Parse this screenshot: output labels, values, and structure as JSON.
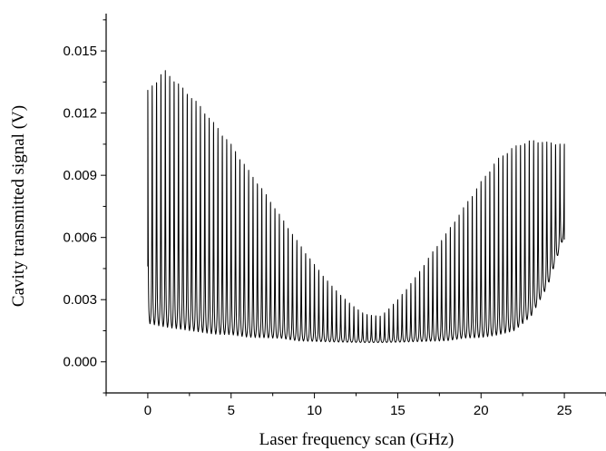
{
  "chart_data": {
    "type": "line",
    "title": "",
    "xlabel": "Laser frequency scan (GHz)",
    "ylabel": "Cavity transmitted signal (V)",
    "xlim": [
      -2.5,
      27.5
    ],
    "ylim": [
      -0.0015,
      0.0168
    ],
    "x_ticks": [
      0,
      5,
      10,
      15,
      20,
      25
    ],
    "x_tick_labels": [
      "0",
      "5",
      "10",
      "15",
      "20",
      "25"
    ],
    "y_ticks": [
      0.0,
      0.003,
      0.006,
      0.009,
      0.012,
      0.015
    ],
    "y_tick_labels": [
      "0.000",
      "0.003",
      "0.006",
      "0.009",
      "0.012",
      "0.015"
    ],
    "grid": false,
    "line_color": "#000000",
    "series": [
      {
        "peak_count": 95,
        "x_range": [
          0,
          25
        ],
        "peak_envelope": {
          "x": [
            0.0,
            1.0,
            2.0,
            3.0,
            4.0,
            5.0,
            6.0,
            7.0,
            8.0,
            9.0,
            10.0,
            11.0,
            12.0,
            13.0,
            14.0,
            15.0,
            16.0,
            17.0,
            18.0,
            19.0,
            20.0,
            21.0,
            22.0,
            23.0,
            24.0,
            25.0
          ],
          "y": [
            0.0131,
            0.0141,
            0.0133,
            0.0125,
            0.0115,
            0.0105,
            0.0093,
            0.0082,
            0.007,
            0.0058,
            0.0047,
            0.0037,
            0.0029,
            0.0023,
            0.0022,
            0.003,
            0.004,
            0.0052,
            0.0063,
            0.0075,
            0.0087,
            0.0098,
            0.0104,
            0.0107,
            0.0106,
            0.0105
          ]
        },
        "baseline_envelope": {
          "x": [
            0.0,
            1.0,
            2.0,
            3.0,
            4.0,
            5.0,
            6.0,
            7.0,
            8.0,
            9.0,
            10.0,
            11.0,
            12.0,
            13.0,
            14.0,
            15.0,
            16.0,
            17.0,
            18.0,
            19.0,
            20.0,
            21.0,
            22.0,
            23.0,
            24.0,
            25.0
          ],
          "y": [
            0.0016,
            0.0014,
            0.0013,
            0.0012,
            0.0011,
            0.0011,
            0.001,
            0.001,
            0.001,
            0.0009,
            0.0009,
            0.0009,
            0.0009,
            0.0009,
            0.0009,
            0.0009,
            0.0009,
            0.0009,
            0.0009,
            0.001,
            0.001,
            0.0011,
            0.0013,
            0.002,
            0.0035,
            0.006
          ]
        },
        "start_value": 0.0046,
        "end_value": 0.0059
      }
    ]
  }
}
